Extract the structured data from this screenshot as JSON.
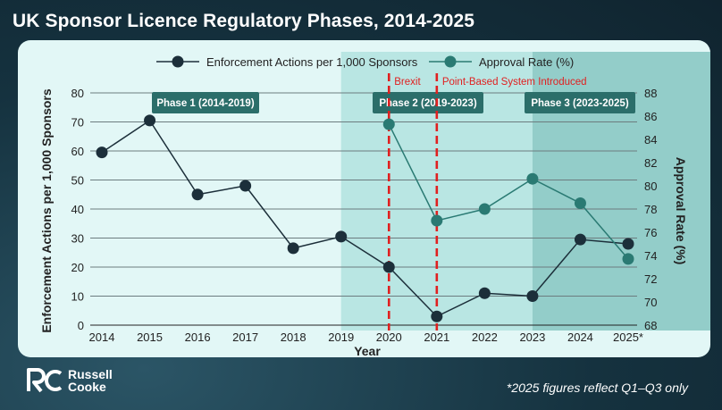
{
  "title": "UK Sponsor Licence Regulatory Phases, 2014-2025",
  "footnote": "*2025 figures reflect Q1–Q3 only",
  "brand": {
    "line1": "Russell",
    "line2": "Cooke",
    "mark": "RC"
  },
  "colors": {
    "background": "#1b3d4d",
    "panel": "#e2f7f6",
    "phase2": "#b9e6e3",
    "phase3": "#93cdc9",
    "label_bg": "#2b6e6a",
    "enforcement": "#1c2f3a",
    "approval": "#2a7a73",
    "event_line": "#e02020"
  },
  "chart_data": {
    "type": "line",
    "title": "UK Sponsor Licence Regulatory Phases, 2014-2025",
    "xlabel": "Year",
    "ylabel": "Enforcement Actions per 1,000 Sponsors",
    "y2label": "Approval Rate (%)",
    "categories": [
      "2014",
      "2015",
      "2016",
      "2017",
      "2018",
      "2019",
      "2020",
      "2021",
      "2022",
      "2023",
      "2024",
      "2025*"
    ],
    "ylim": [
      0,
      80
    ],
    "y2lim": [
      68,
      88
    ],
    "yticks": [
      0,
      10,
      20,
      30,
      40,
      50,
      60,
      70,
      80
    ],
    "y2ticks": [
      68,
      70,
      72,
      74,
      76,
      78,
      80,
      82,
      84,
      86,
      88
    ],
    "grid": "horizontal",
    "legend_position": "top-center",
    "series": [
      {
        "name": "Enforcement Actions per 1,000 Sponsors",
        "axis": "left",
        "values": [
          59.5,
          70.5,
          45,
          48,
          26.5,
          30.5,
          20,
          3,
          11,
          10,
          29.5,
          28
        ]
      },
      {
        "name": "Approval Rate (%)",
        "axis": "right",
        "values": [
          null,
          null,
          null,
          null,
          null,
          null,
          85.3,
          77,
          78,
          80.6,
          78.5,
          73.7
        ]
      }
    ],
    "phases": [
      {
        "label": "Phase 1 (2014-2019)",
        "start": "2014",
        "end": "2019"
      },
      {
        "label": "Phase 2 (2019-2023)",
        "start": "2019",
        "end": "2023"
      },
      {
        "label": "Phase 3 (2023-2025)",
        "start": "2023",
        "end": "2025*"
      }
    ],
    "events": [
      {
        "label": "Brexit",
        "year": "2020"
      },
      {
        "label": "Point-Based System Introduced",
        "year": "2021"
      }
    ]
  }
}
